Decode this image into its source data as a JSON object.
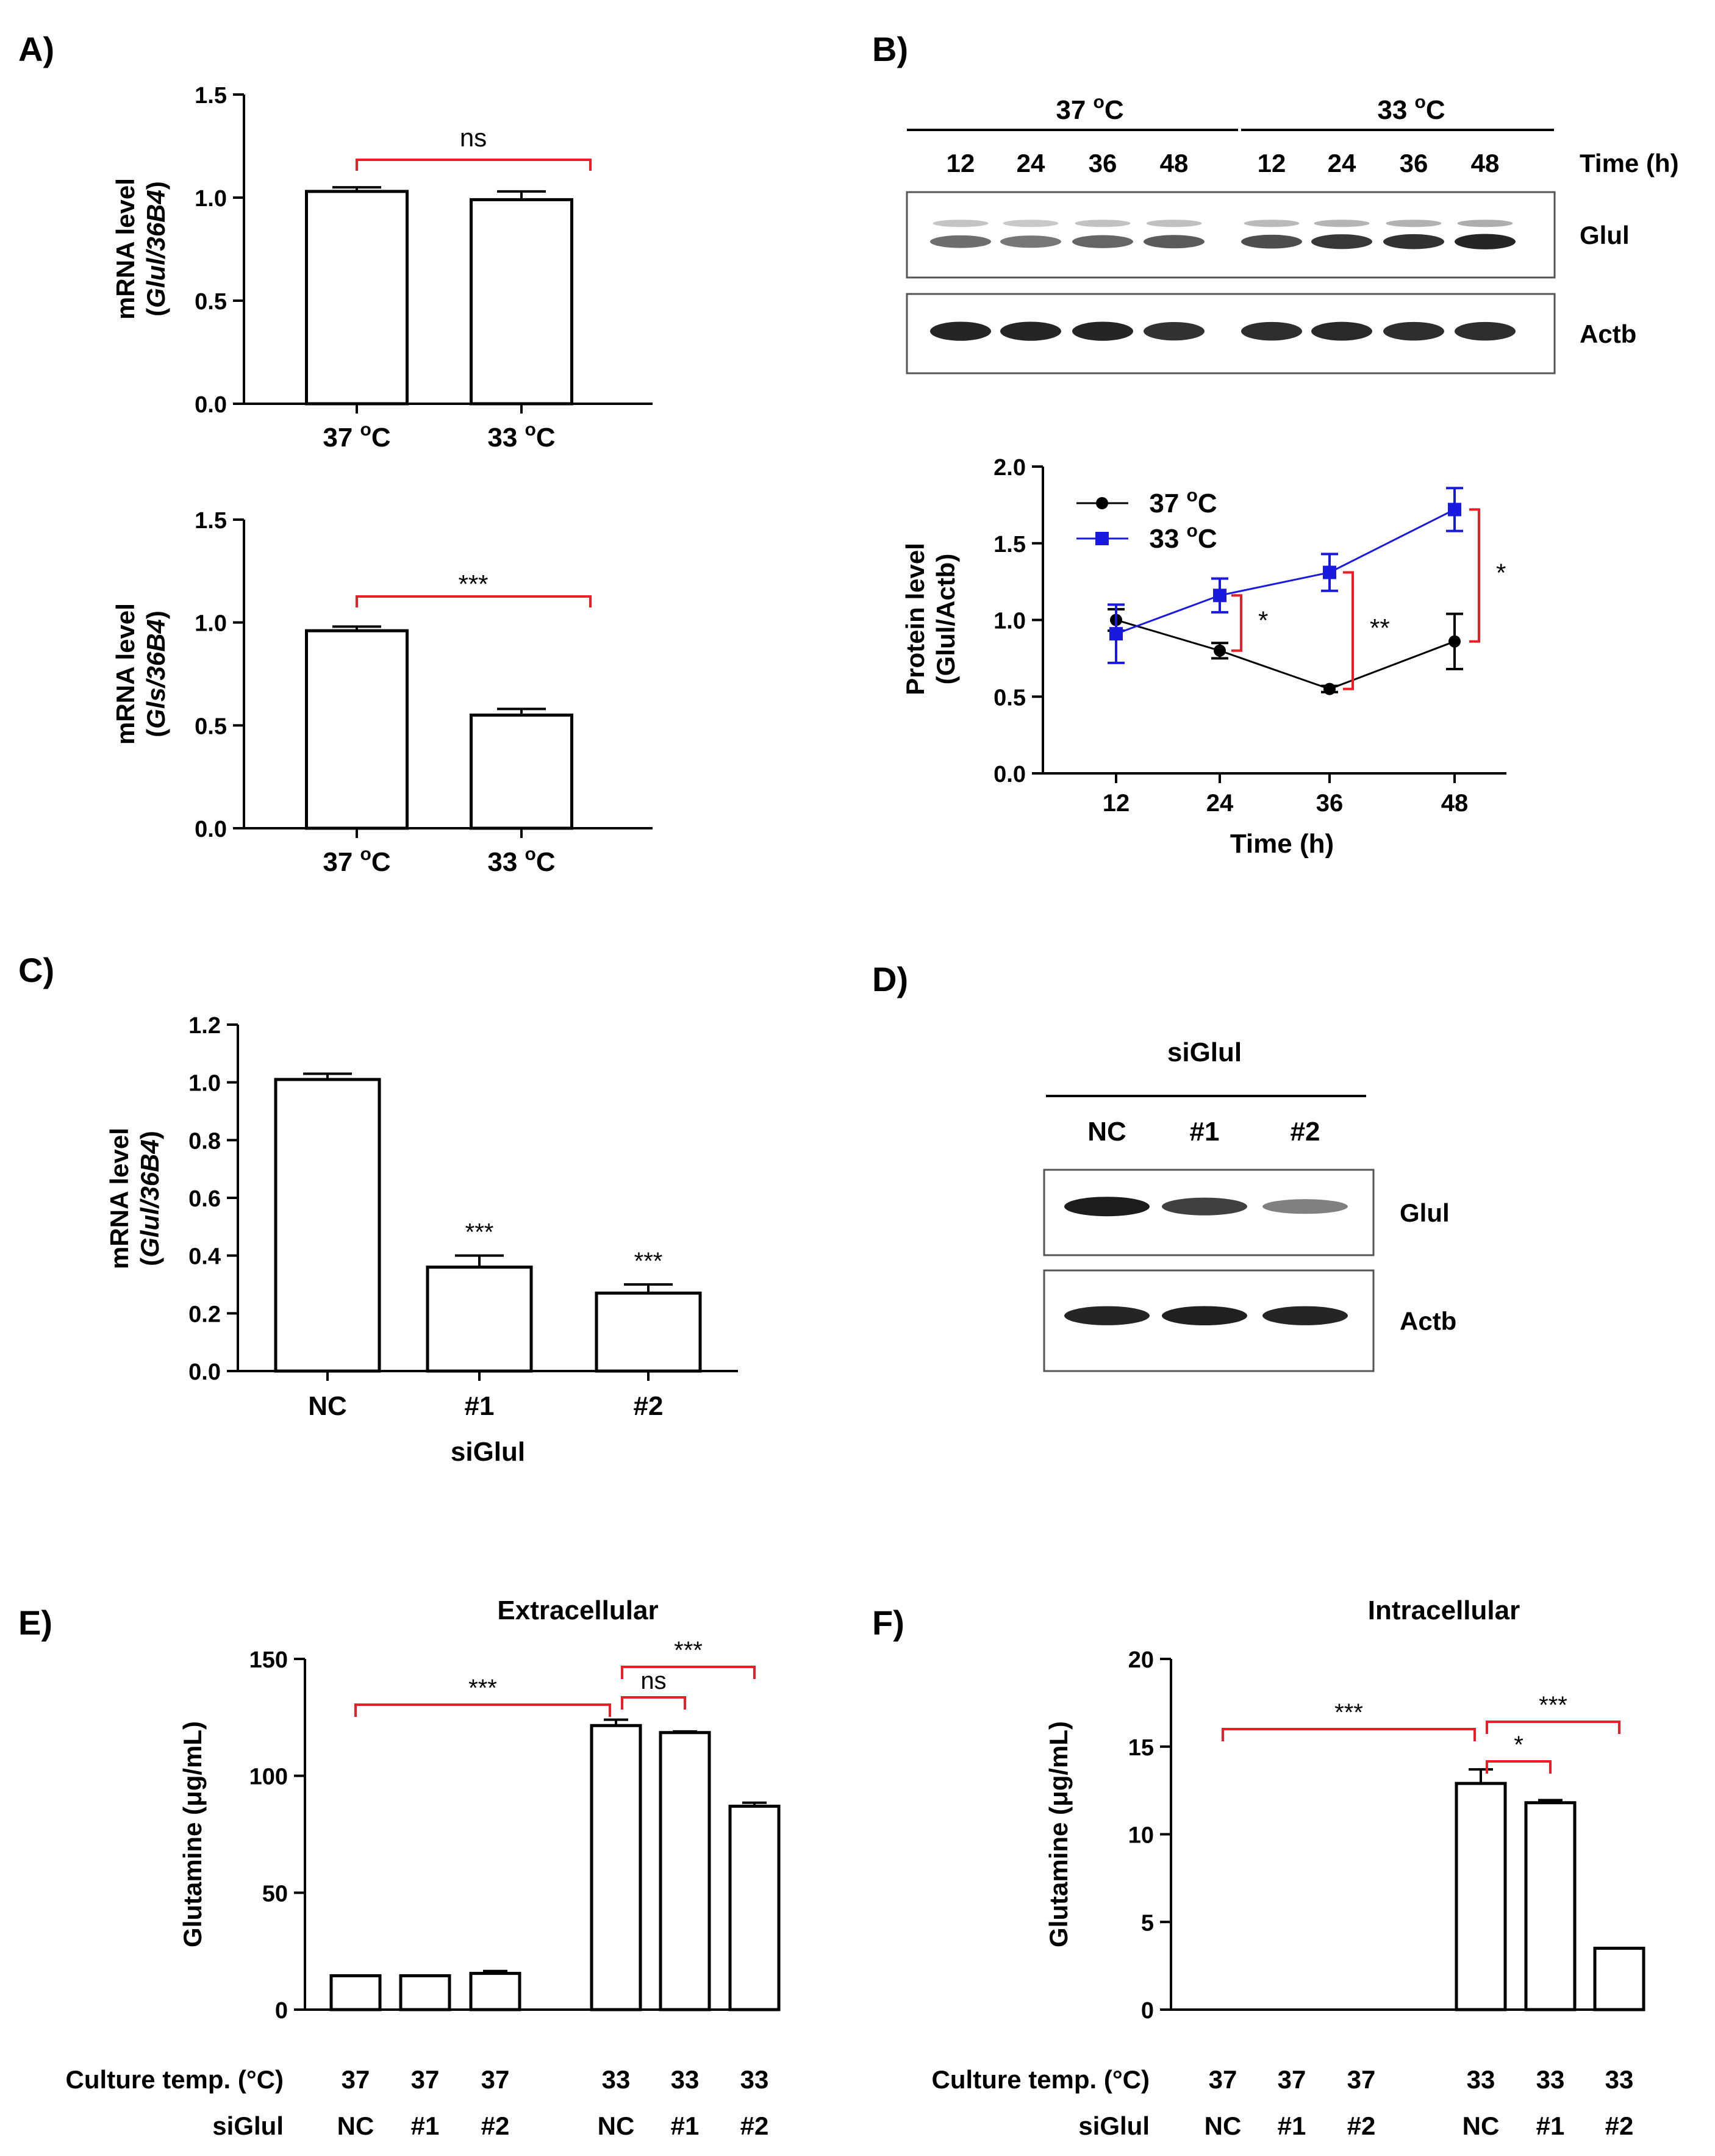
{
  "panel_labels": {
    "A": "A)",
    "B": "B)",
    "C": "C)",
    "D": "D)",
    "E": "E)",
    "F": "F)"
  },
  "colors": {
    "sig": "#ee1c25",
    "blue": "#1a1adf",
    "black": "#000000",
    "band": "#1c1c1c"
  },
  "chart_data": [
    {
      "id": "A1",
      "type": "bar",
      "categories": [
        "37 °C",
        "33 °C"
      ],
      "values": [
        1.03,
        0.99
      ],
      "errors": [
        0.02,
        0.04
      ],
      "ylim": [
        0,
        1.5
      ],
      "yticks": [
        0.0,
        0.5,
        1.0,
        1.5
      ],
      "ylabel_line1": "mRNA level",
      "ylabel_pre": "(",
      "ylabel_italic": "Glul/36B4",
      "ylabel_post": ")",
      "annotations": [
        {
          "text": "ns",
          "from": 0,
          "to": 1
        }
      ]
    },
    {
      "id": "A2",
      "type": "bar",
      "categories": [
        "37 °C",
        "33 °C"
      ],
      "values": [
        0.96,
        0.55
      ],
      "errors": [
        0.02,
        0.03
      ],
      "ylim": [
        0,
        1.5
      ],
      "yticks": [
        0.0,
        0.5,
        1.0,
        1.5
      ],
      "ylabel_line1": "mRNA level",
      "ylabel_pre": "(",
      "ylabel_italic": "Gls/36B4",
      "ylabel_post": ")",
      "annotations": [
        {
          "text": "***",
          "from": 0,
          "to": 1
        }
      ]
    },
    {
      "id": "B",
      "type": "line",
      "x": [
        12,
        24,
        36,
        48
      ],
      "ylim": [
        0,
        2.0
      ],
      "yticks": [
        0.0,
        0.5,
        1.0,
        1.5,
        2.0
      ],
      "xlabel": "Time (h)",
      "ylabel_line1": "Protein level",
      "ylabel_line2": "(Glul/Actb)",
      "series": [
        {
          "name": "37 °C",
          "color": "#000000",
          "marker": "circle",
          "values": [
            1.0,
            0.8,
            0.55,
            0.86
          ],
          "errors": [
            0.07,
            0.05,
            0.02,
            0.18
          ]
        },
        {
          "name": "33 °C",
          "color": "#1a1adf",
          "marker": "square",
          "values": [
            0.91,
            1.16,
            1.31,
            1.72
          ],
          "errors": [
            0.19,
            0.11,
            0.12,
            0.14
          ]
        }
      ],
      "annotations": [
        {
          "text": "*",
          "x": 24
        },
        {
          "text": "**",
          "x": 36
        },
        {
          "text": "*",
          "x": 48
        }
      ]
    },
    {
      "id": "C",
      "type": "bar",
      "categories": [
        "NC",
        "#1",
        "#2"
      ],
      "values": [
        1.01,
        0.36,
        0.27
      ],
      "errors": [
        0.02,
        0.04,
        0.03
      ],
      "ylim": [
        0,
        1.2
      ],
      "yticks": [
        0.0,
        0.2,
        0.4,
        0.6,
        0.8,
        1.0,
        1.2
      ],
      "xlabel": "siGlul",
      "ylabel_line1": "mRNA level",
      "ylabel_pre": "(",
      "ylabel_italic": "Glul/36B4",
      "ylabel_post": ")",
      "star_labels": [
        "",
        "***",
        "***"
      ]
    },
    {
      "id": "E",
      "type": "bar",
      "title": "Extracellular",
      "temps": [
        "37",
        "37",
        "37",
        "33",
        "33",
        "33"
      ],
      "categories": [
        "NC",
        "#1",
        "#2",
        "NC",
        "#1",
        "#2"
      ],
      "values": [
        14.5,
        14.5,
        15.5,
        121.5,
        118.5,
        87.0
      ],
      "errors": [
        0,
        0,
        1.0,
        2.5,
        0.5,
        1.5
      ],
      "ylim": [
        0,
        150
      ],
      "yticks": [
        0,
        50,
        100,
        150
      ],
      "ylabel": "Glutamine (μg/mL)",
      "row_label_temp": "Culture temp. (°C)",
      "row_label_si": "siGlul",
      "annotations": [
        {
          "text": "***",
          "from": 0,
          "to": 3
        },
        {
          "text": "ns",
          "from": 3,
          "to": 4
        },
        {
          "text": "***",
          "from": 3,
          "to": 5
        }
      ]
    },
    {
      "id": "F",
      "type": "bar",
      "title": "Intracellular",
      "temps": [
        "37",
        "37",
        "37",
        "33",
        "33",
        "33"
      ],
      "categories": [
        "NC",
        "#1",
        "#2",
        "NC",
        "#1",
        "#2"
      ],
      "values": [
        0,
        0,
        0,
        12.9,
        11.8,
        3.5
      ],
      "errors": [
        0,
        0,
        0,
        0.8,
        0.15,
        0
      ],
      "ylim": [
        0,
        20
      ],
      "yticks": [
        0,
        5,
        10,
        15,
        20
      ],
      "ylabel": "Glutamine (μg/mL)",
      "row_label_temp": "Culture temp. (°C)",
      "row_label_si": "siGlul",
      "annotations": [
        {
          "text": "***",
          "from": 0,
          "to": 3
        },
        {
          "text": "*",
          "from": 3,
          "to": 4
        },
        {
          "text": "***",
          "from": 3,
          "to": 5
        }
      ]
    }
  ],
  "blot_B": {
    "group_37": "37 °C",
    "group_33": "33 °C",
    "time_label": "Time (h)",
    "lanes": [
      "12",
      "24",
      "36",
      "48",
      "12",
      "24",
      "36",
      "48"
    ],
    "rows": [
      {
        "label": "Glul",
        "intensity": [
          0.55,
          0.5,
          0.6,
          0.65,
          0.72,
          0.85,
          0.88,
          0.95
        ]
      },
      {
        "label": "Actb",
        "intensity": [
          0.95,
          0.95,
          0.95,
          0.88,
          0.9,
          0.92,
          0.9,
          0.9
        ]
      }
    ]
  },
  "blot_D": {
    "group_label": "siGlul",
    "lanes": [
      "NC",
      "#1",
      "#2"
    ],
    "rows": [
      {
        "label": "Glul",
        "intensity": [
          1.0,
          0.8,
          0.45
        ]
      },
      {
        "label": "Actb",
        "intensity": [
          0.95,
          0.97,
          0.95
        ]
      }
    ]
  }
}
